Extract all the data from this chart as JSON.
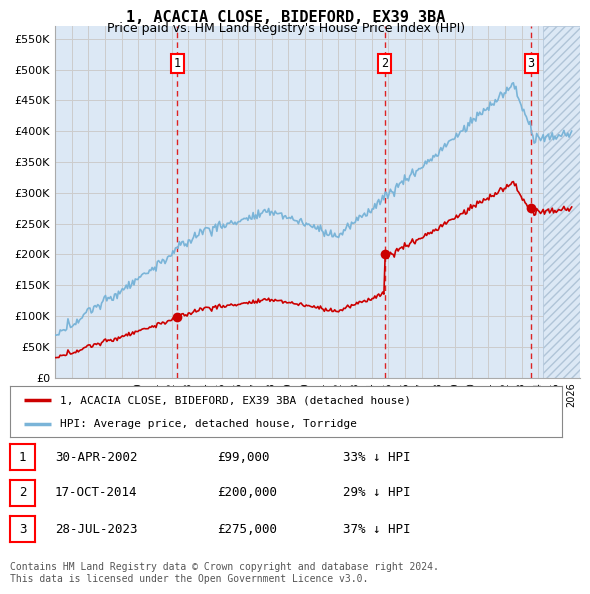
{
  "title": "1, ACACIA CLOSE, BIDEFORD, EX39 3BA",
  "subtitle": "Price paid vs. HM Land Registry's House Price Index (HPI)",
  "yticks": [
    0,
    50000,
    100000,
    150000,
    200000,
    250000,
    300000,
    350000,
    400000,
    450000,
    500000,
    550000
  ],
  "ylim": [
    0,
    570000
  ],
  "xlim_start": 1995.0,
  "xlim_end": 2026.5,
  "xticks": [
    1995,
    1996,
    1997,
    1998,
    1999,
    2000,
    2001,
    2002,
    2003,
    2004,
    2005,
    2006,
    2007,
    2008,
    2009,
    2010,
    2011,
    2012,
    2013,
    2014,
    2015,
    2016,
    2017,
    2018,
    2019,
    2020,
    2021,
    2022,
    2023,
    2024,
    2025,
    2026
  ],
  "hpi_color": "#7ab4d8",
  "sale_color": "#cc0000",
  "grid_color": "#cccccc",
  "bg_chart": "#dce8f5",
  "sale_dates": [
    2002.33,
    2014.79,
    2023.57
  ],
  "sale_labels": [
    "1",
    "2",
    "3"
  ],
  "sale_prices": [
    99000,
    200000,
    275000
  ],
  "legend_label_sale": "1, ACACIA CLOSE, BIDEFORD, EX39 3BA (detached house)",
  "legend_label_hpi": "HPI: Average price, detached house, Torridge",
  "table_rows": [
    [
      "1",
      "30-APR-2002",
      "£99,000",
      "33% ↓ HPI"
    ],
    [
      "2",
      "17-OCT-2014",
      "£200,000",
      "29% ↓ HPI"
    ],
    [
      "3",
      "28-JUL-2023",
      "£275,000",
      "37% ↓ HPI"
    ]
  ],
  "footnote": "Contains HM Land Registry data © Crown copyright and database right 2024.\nThis data is licensed under the Open Government Licence v3.0.",
  "title_fontsize": 11,
  "subtitle_fontsize": 9
}
